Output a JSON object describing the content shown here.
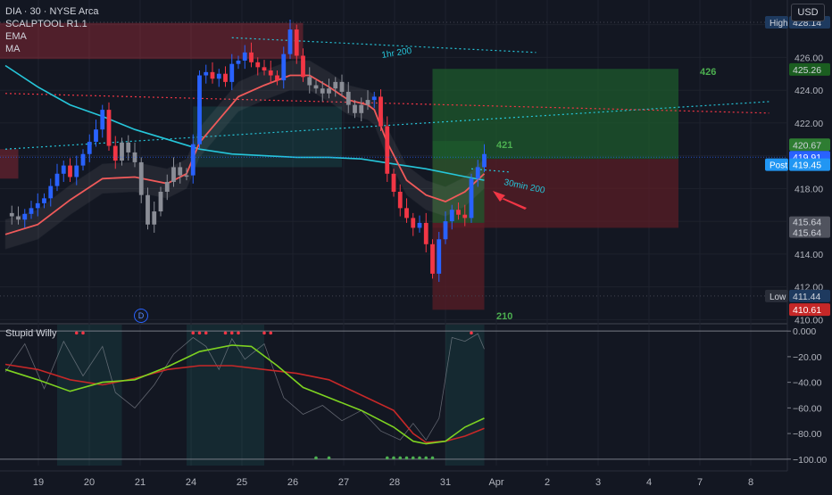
{
  "header": {
    "symbol_line": "DIA · 30 · NYSE Arca",
    "indicators": [
      "SCALPTOOL R1.1",
      "EMA",
      "MA"
    ],
    "currency": "USD"
  },
  "oscillator": {
    "title": "Stupid Willy",
    "axis_labels": [
      "0.000",
      "−20.00",
      "−40.00",
      "−60.00",
      "−80.00",
      "−100.00"
    ]
  },
  "badges": {
    "high_label": "High",
    "high_value": "428.14",
    "post_label": "Post",
    "post_value": "419.45",
    "low_label": "Low",
    "low_value": "411.44",
    "v1": "425.26",
    "v2": "420.67",
    "v3": "419.91",
    "v4": "415.64",
    "v5": "415.64",
    "v6": "410.61"
  },
  "annotations": {
    "trend_long": "1hr 200",
    "trend_short": "30min 200",
    "target_426": "426",
    "target_421": "421",
    "target_210": "210",
    "dividend_marker": "D"
  },
  "colors": {
    "up": "#2962ff",
    "down": "#f23645",
    "ema": "#f05a5a",
    "ma": "#26c6da",
    "profit": "#1e5a2c",
    "loss": "#5a1e26",
    "osc_fast": "#7ed321",
    "osc_slow": "#c62828",
    "label_green": "#4caf50"
  },
  "chart_data": [
    {
      "type": "candlestick",
      "title": "DIA · 30 · NYSE Arca",
      "x_tick_labels": [
        "19",
        "20",
        "21",
        "24",
        "25",
        "26",
        "27",
        "28",
        "31",
        "Apr",
        "2",
        "3",
        "4",
        "7",
        "8"
      ],
      "y_tick_labels": [
        "410.00",
        "412.00",
        "414.00",
        "416.00",
        "418.00",
        "420.00",
        "422.00",
        "424.00",
        "426.00",
        "428.00"
      ],
      "ylim": [
        409.8,
        429.5
      ],
      "close_path": [
        [
          0,
          416.5
        ],
        [
          2,
          416.1
        ],
        [
          4,
          416.8
        ],
        [
          6,
          417.4
        ],
        [
          8,
          418.9
        ],
        [
          9,
          419.4
        ],
        [
          10,
          418.7
        ],
        [
          12,
          420.1
        ],
        [
          14,
          421.6
        ],
        [
          15,
          422.8
        ],
        [
          16,
          420.6
        ],
        [
          17,
          419.7
        ],
        [
          18,
          420.8
        ],
        [
          20,
          419.6
        ],
        [
          21,
          417.6
        ],
        [
          22,
          415.8
        ],
        [
          23,
          416.6
        ],
        [
          24,
          417.8
        ],
        [
          25,
          418.4
        ],
        [
          26,
          419.3
        ],
        [
          27,
          418.8
        ],
        [
          28,
          418.8
        ],
        [
          29,
          420.7
        ],
        [
          30,
          424.9
        ],
        [
          31,
          425.1
        ],
        [
          32,
          424.7
        ],
        [
          33,
          425.0
        ],
        [
          34,
          424.5
        ],
        [
          35,
          425.6
        ],
        [
          36,
          425.8
        ],
        [
          37,
          426.3
        ],
        [
          38,
          425.7
        ],
        [
          39,
          425.4
        ],
        [
          40,
          425.2
        ],
        [
          41,
          424.9
        ],
        [
          42,
          424.6
        ],
        [
          43,
          426.2
        ],
        [
          44,
          427.7
        ],
        [
          45,
          426.1
        ],
        [
          46,
          424.8
        ],
        [
          47,
          424.3
        ],
        [
          48,
          424.1
        ],
        [
          49,
          423.8
        ],
        [
          50,
          424.1
        ],
        [
          51,
          424.5
        ],
        [
          52,
          423.9
        ],
        [
          53,
          423.1
        ],
        [
          54,
          422.6
        ],
        [
          55,
          423.1
        ],
        [
          56,
          423.4
        ],
        [
          57,
          423.6
        ],
        [
          58,
          421.8
        ],
        [
          59,
          418.9
        ],
        [
          60,
          417.8
        ],
        [
          61,
          416.8
        ],
        [
          62,
          416.2
        ],
        [
          63,
          415.6
        ],
        [
          64,
          415.9
        ],
        [
          65,
          414.6
        ],
        [
          66,
          412.8
        ],
        [
          67,
          414.9
        ],
        [
          68,
          416.0
        ],
        [
          69,
          416.7
        ],
        [
          70,
          416.4
        ],
        [
          71,
          416.2
        ],
        [
          72,
          418.6
        ],
        [
          73,
          419.3
        ],
        [
          74,
          420.1
        ]
      ],
      "ema": [
        [
          0,
          415.2
        ],
        [
          5,
          415.8
        ],
        [
          10,
          417.3
        ],
        [
          15,
          418.6
        ],
        [
          20,
          418.7
        ],
        [
          25,
          418.3
        ],
        [
          28,
          418.9
        ],
        [
          30,
          420.8
        ],
        [
          33,
          422.2
        ],
        [
          36,
          423.6
        ],
        [
          40,
          424.3
        ],
        [
          44,
          424.9
        ],
        [
          47,
          424.9
        ],
        [
          50,
          424.2
        ],
        [
          53,
          423.4
        ],
        [
          56,
          423.1
        ],
        [
          57,
          422.8
        ],
        [
          59,
          420.8
        ],
        [
          62,
          418.5
        ],
        [
          65,
          417.6
        ],
        [
          68,
          417.2
        ],
        [
          71,
          417.8
        ],
        [
          74,
          418.9
        ]
      ],
      "ma": [
        [
          0,
          425.5
        ],
        [
          5,
          424.2
        ],
        [
          10,
          423.1
        ],
        [
          15,
          422.4
        ],
        [
          20,
          421.6
        ],
        [
          25,
          421.0
        ],
        [
          30,
          420.4
        ],
        [
          35,
          420.1
        ],
        [
          40,
          420.0
        ],
        [
          45,
          419.9
        ],
        [
          50,
          419.9
        ],
        [
          55,
          419.8
        ],
        [
          60,
          419.5
        ],
        [
          65,
          419.2
        ],
        [
          70,
          418.8
        ],
        [
          74,
          418.5
        ]
      ],
      "series": [
        {
          "name": "EMA"
        },
        {
          "name": "MA"
        }
      ],
      "trendlines": [
        {
          "label": "1hr 200",
          "from": [
            35,
            427.2
          ],
          "to": [
            82,
            426.3
          ]
        },
        {
          "label": "30min 200",
          "from": [
            72,
            419.2
          ],
          "to": [
            78,
            419.0
          ]
        }
      ],
      "dotted_levels": [
        {
          "from": [
            0,
            420.4
          ],
          "to": [
            118,
            423.3
          ]
        },
        {
          "from": [
            0,
            423.8
          ],
          "to": [
            118,
            422.6
          ]
        }
      ],
      "positions": [
        {
          "entry": 419.8,
          "target": 425.3,
          "stop": 415.6,
          "x_from": 66,
          "x_to": 104,
          "label": "426"
        },
        {
          "entry": 415.9,
          "target": 420.9,
          "stop": 410.6,
          "x_from": 66,
          "x_to": 74,
          "label": "421"
        }
      ],
      "grid": true
    },
    {
      "type": "line",
      "title": "Stupid Willy",
      "ylim": [
        -105,
        5
      ],
      "y_tick_labels": [
        "0.000",
        "−20.00",
        "−40.00",
        "−60.00",
        "−80.00",
        "−100.00"
      ],
      "series": [
        {
          "values": [
            [
              0,
              -30
            ],
            [
              5,
              -38
            ],
            [
              10,
              -47
            ],
            [
              15,
              -40
            ],
            [
              20,
              -38
            ],
            [
              25,
              -28
            ],
            [
              30,
              -16
            ],
            [
              35,
              -11
            ],
            [
              38,
              -12
            ],
            [
              42,
              -27
            ],
            [
              46,
              -44
            ],
            [
              50,
              -52
            ],
            [
              55,
              -62
            ],
            [
              60,
              -75
            ],
            [
              63,
              -86
            ],
            [
              65,
              -88
            ],
            [
              68,
              -86
            ],
            [
              71,
              -75
            ],
            [
              74,
              -68
            ]
          ]
        },
        {
          "values": [
            [
              0,
              -26
            ],
            [
              5,
              -30
            ],
            [
              10,
              -38
            ],
            [
              15,
              -42
            ],
            [
              20,
              -37
            ],
            [
              25,
              -30
            ],
            [
              30,
              -27
            ],
            [
              35,
              -27
            ],
            [
              40,
              -30
            ],
            [
              45,
              -33
            ],
            [
              50,
              -38
            ],
            [
              55,
              -50
            ],
            [
              60,
              -62
            ],
            [
              63,
              -80
            ],
            [
              65,
              -87
            ],
            [
              68,
              -86
            ],
            [
              71,
              -82
            ],
            [
              74,
              -76
            ]
          ]
        },
        {
          "values": [
            [
              0,
              -32
            ],
            [
              3,
              -10
            ],
            [
              6,
              -45
            ],
            [
              9,
              -8
            ],
            [
              12,
              -35
            ],
            [
              15,
              -12
            ],
            [
              17,
              -48
            ],
            [
              20,
              -60
            ],
            [
              23,
              -42
            ],
            [
              26,
              -18
            ],
            [
              29,
              -5
            ],
            [
              31,
              -12
            ],
            [
              33,
              -30
            ],
            [
              35,
              -6
            ],
            [
              37,
              -22
            ],
            [
              40,
              -10
            ],
            [
              43,
              -52
            ],
            [
              46,
              -65
            ],
            [
              49,
              -58
            ],
            [
              52,
              -70
            ],
            [
              55,
              -62
            ],
            [
              58,
              -78
            ],
            [
              61,
              -85
            ],
            [
              63,
              -72
            ],
            [
              65,
              -85
            ],
            [
              67,
              -68
            ],
            [
              69,
              -5
            ],
            [
              71,
              -8
            ],
            [
              73,
              -2
            ],
            [
              74,
              -14
            ]
          ]
        }
      ],
      "highlight_zones": [
        [
          8,
          18
        ],
        [
          28,
          40
        ],
        [
          68,
          74
        ]
      ]
    }
  ]
}
